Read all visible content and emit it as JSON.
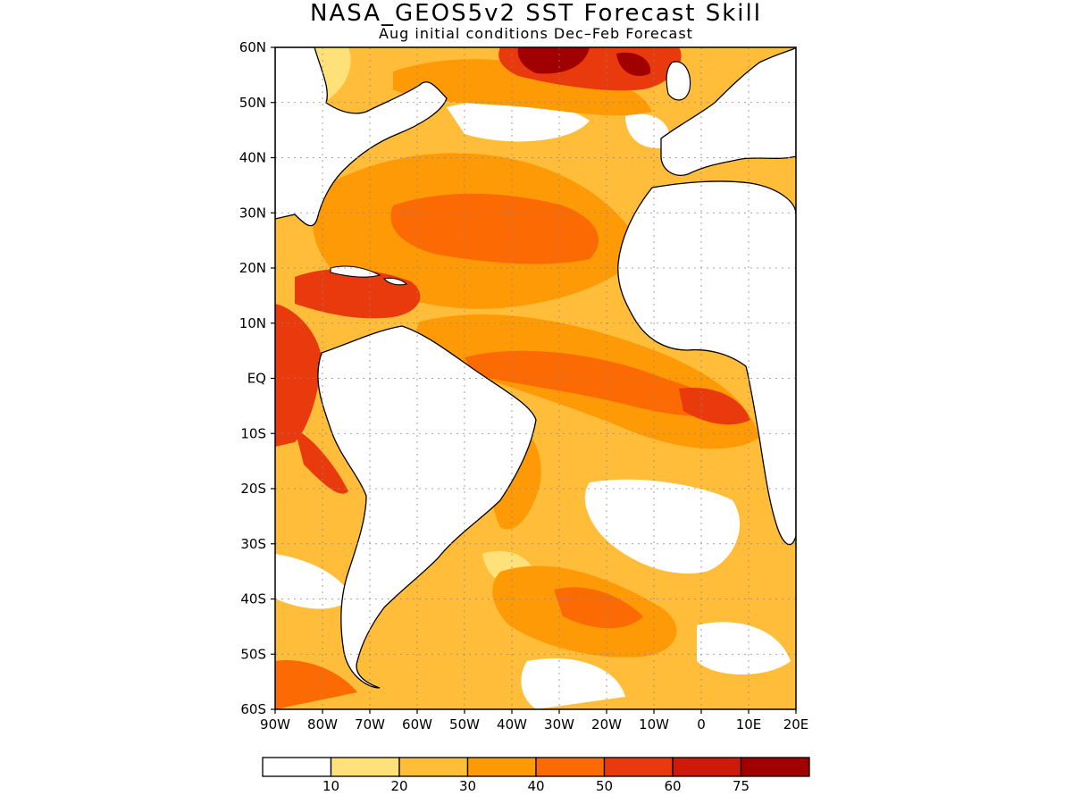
{
  "title": "NASA_GEOS5v2 SST Forecast Skill",
  "subtitle": "Aug initial conditions   Dec–Feb Forecast",
  "map": {
    "region": "Atlantic Ocean",
    "lon_range": [
      -90,
      20
    ],
    "lat_range": [
      -60,
      60
    ],
    "grid": true,
    "lat_ticks": [
      {
        "value": 60,
        "label": "60N"
      },
      {
        "value": 50,
        "label": "50N"
      },
      {
        "value": 40,
        "label": "40N"
      },
      {
        "value": 30,
        "label": "30N"
      },
      {
        "value": 20,
        "label": "20N"
      },
      {
        "value": 10,
        "label": "10N"
      },
      {
        "value": 0,
        "label": "EQ"
      },
      {
        "value": -10,
        "label": "10S"
      },
      {
        "value": -20,
        "label": "20S"
      },
      {
        "value": -30,
        "label": "30S"
      },
      {
        "value": -40,
        "label": "40S"
      },
      {
        "value": -50,
        "label": "50S"
      },
      {
        "value": -60,
        "label": "60S"
      }
    ],
    "lon_ticks": [
      {
        "value": -90,
        "label": "90W"
      },
      {
        "value": -80,
        "label": "80W"
      },
      {
        "value": -70,
        "label": "70W"
      },
      {
        "value": -60,
        "label": "60W"
      },
      {
        "value": -50,
        "label": "50W"
      },
      {
        "value": -40,
        "label": "40W"
      },
      {
        "value": -30,
        "label": "30W"
      },
      {
        "value": -20,
        "label": "20W"
      },
      {
        "value": -10,
        "label": "10W"
      },
      {
        "value": 0,
        "label": "0"
      },
      {
        "value": 10,
        "label": "10E"
      },
      {
        "value": 20,
        "label": "20E"
      }
    ]
  },
  "colorbar": {
    "bins": [
      {
        "color": "#ffffff",
        "label": "10"
      },
      {
        "color": "#ffe17a",
        "label": "20"
      },
      {
        "color": "#ffbd3a",
        "label": "30"
      },
      {
        "color": "#fd9a06",
        "label": "40"
      },
      {
        "color": "#fb6a03",
        "label": "50"
      },
      {
        "color": "#e93a0e",
        "label": "60"
      },
      {
        "color": "#cc1a0b",
        "label": "75"
      },
      {
        "color": "#a00000",
        "label": ""
      }
    ]
  },
  "colors": {
    "land": "#ffffff",
    "coast": "#000000",
    "grid": "#888888"
  }
}
